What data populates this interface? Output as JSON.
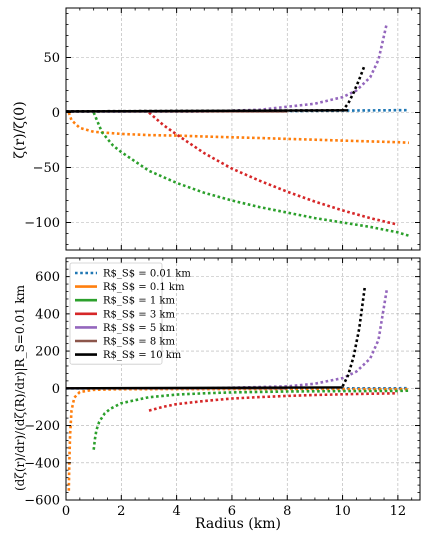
{
  "colors": {
    "series": [
      "#1f77b4",
      "#ff7f0e",
      "#2ca02c",
      "#d62728",
      "#9467bd",
      "#8c564b",
      "#000000"
    ],
    "grid": "#b0b0b0"
  },
  "legend_items": [
    "R$_S$ = 0.01 km",
    "R$_S$ = 0.1 km",
    "R$_S$ = 1 km",
    "R$_S$ = 3 km",
    "R$_S$ = 5 km",
    "R$_S$ = 8 km",
    "R$_S$ = 10 km"
  ],
  "chart_data": [
    {
      "type": "line",
      "panel": "top",
      "ylabel": "ζ(r)/ζ(0)",
      "xlim": [
        0,
        12.8
      ],
      "ylim": [
        -125,
        95
      ],
      "yticks": [
        50,
        0,
        -50,
        -100
      ],
      "xticks": [
        0,
        2,
        4,
        6,
        8,
        10,
        12
      ],
      "grid": true,
      "series": [
        {
          "name": "R$_S$ = 0.01 km",
          "style": "dotted",
          "x": [
            0,
            2,
            4,
            6,
            8,
            10,
            12,
            12.4
          ],
          "y": [
            1,
            1,
            1.1,
            1.2,
            1.4,
            1.7,
            2.1,
            2.2
          ]
        },
        {
          "name": "R$_S$ = 0.1 km",
          "style": "dotted",
          "x": [
            0.1,
            0.2,
            0.5,
            1,
            2,
            3,
            4,
            5,
            6,
            7,
            8,
            9,
            10,
            11,
            12,
            12.4
          ],
          "y": [
            0,
            -7,
            -14,
            -17.5,
            -19.5,
            -20.5,
            -21,
            -21.8,
            -22.5,
            -23.2,
            -24,
            -24.7,
            -25.5,
            -26.3,
            -27,
            -27.5
          ]
        },
        {
          "name": "R$_S$ = 1 km",
          "style": "dotted",
          "x": [
            1,
            1.3,
            1.7,
            2,
            3,
            4,
            5,
            6,
            7,
            8,
            9,
            10,
            11,
            12,
            12.4
          ],
          "y": [
            0,
            -18,
            -30,
            -36,
            -53,
            -64,
            -73,
            -80,
            -86,
            -91,
            -96,
            -100,
            -104,
            -109,
            -112
          ]
        },
        {
          "name": "R$_S$ = 3 km",
          "style": "dotted",
          "x": [
            3,
            3.5,
            4,
            5,
            6,
            7,
            8,
            9,
            10,
            11,
            12
          ],
          "y": [
            0,
            -11,
            -20,
            -37,
            -51,
            -62,
            -72,
            -81,
            -89,
            -96,
            -102
          ]
        },
        {
          "name": "R$_S$ = 5 km",
          "style": "dotted",
          "x": [
            0,
            5,
            7,
            9,
            10,
            10.5,
            11,
            11.3,
            11.6
          ],
          "y": [
            1,
            1,
            2.5,
            8,
            14,
            20,
            32,
            48,
            81
          ]
        },
        {
          "name": "R$_S$ = 8 km",
          "style": "solid",
          "x": [
            0,
            8
          ],
          "y": [
            1,
            1
          ]
        },
        {
          "name": "R$_S$ = 10 km",
          "style": "dotted",
          "x": [
            0,
            10,
            10.2,
            10.4,
            10.6,
            10.8
          ],
          "y": [
            1,
            2,
            8,
            18,
            30,
            43
          ]
        },
        {
          "name": "R$_S$ = 10 km",
          "style": "solid",
          "x": [
            0,
            10.2
          ],
          "y": [
            1,
            2
          ]
        }
      ]
    },
    {
      "type": "line",
      "panel": "bottom",
      "xlabel": "Radius (km)",
      "ylabel": "(dζ(r)/dr)/(dζ(R)/dr)|R_S=0.01 km",
      "xlim": [
        0,
        12.8
      ],
      "ylim": [
        -600,
        700
      ],
      "yticks": [
        600,
        400,
        200,
        0,
        -200,
        -400,
        -600
      ],
      "xticks": [
        0,
        2,
        4,
        6,
        8,
        10,
        12
      ],
      "grid": true,
      "legend": "top-left",
      "series": [
        {
          "name": "R$_S$ = 0.01 km",
          "style": "dotted",
          "x": [
            0,
            2,
            4,
            6,
            8,
            10,
            12,
            12.4
          ],
          "y": [
            0,
            0,
            0,
            0,
            0,
            0,
            0,
            1
          ]
        },
        {
          "name": "R$_S$ = 0.1 km",
          "style": "dotted",
          "x": [
            0.1,
            0.12,
            0.15,
            0.2,
            0.3,
            0.5,
            1,
            2,
            4,
            6,
            8,
            10,
            12,
            12.4
          ],
          "y": [
            -550,
            -400,
            -250,
            -120,
            -50,
            -20,
            -8,
            -5,
            -4,
            -4,
            -4,
            -4,
            -5,
            -5
          ]
        },
        {
          "name": "R$_S$ = 1 km",
          "style": "dotted",
          "x": [
            1,
            1.05,
            1.1,
            1.2,
            1.4,
            1.6,
            2,
            3,
            4,
            5,
            6,
            8,
            10,
            12,
            12.4
          ],
          "y": [
            -330,
            -270,
            -225,
            -180,
            -135,
            -110,
            -80,
            -48,
            -34,
            -27,
            -22,
            -17,
            -15,
            -14,
            -13
          ]
        },
        {
          "name": "R$_S$ = 3 km",
          "style": "dotted",
          "x": [
            3,
            3.5,
            4,
            5,
            6,
            7,
            8,
            9,
            10,
            11,
            12
          ],
          "y": [
            -120,
            -100,
            -85,
            -68,
            -55,
            -47,
            -41,
            -36,
            -32,
            -29,
            -27
          ]
        },
        {
          "name": "R$_S$ = 5 km",
          "style": "dotted",
          "x": [
            0,
            5,
            8,
            9,
            10,
            10.5,
            11,
            11.3,
            11.6
          ],
          "y": [
            0,
            0,
            10,
            25,
            55,
            90,
            160,
            260,
            530
          ]
        },
        {
          "name": "R$_S$ = 8 km",
          "style": "solid",
          "x": [
            0,
            8
          ],
          "y": [
            0,
            0
          ]
        },
        {
          "name": "R$_S$ = 10 km",
          "style": "dotted",
          "x": [
            10,
            10.2,
            10.4,
            10.6,
            10.8
          ],
          "y": [
            10,
            70,
            170,
            320,
            540
          ]
        },
        {
          "name": "R$_S$ = 10 km",
          "style": "solid",
          "x": [
            0,
            10
          ],
          "y": [
            0,
            5
          ]
        }
      ]
    }
  ]
}
